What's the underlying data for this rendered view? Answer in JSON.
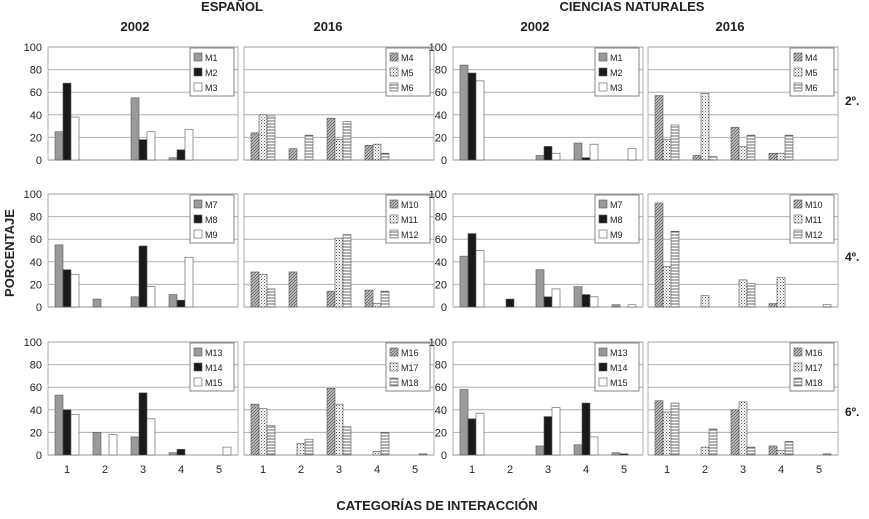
{
  "header": {
    "subject_1": "ESPAÑOL",
    "subject_2": "CIENCIAS NATURALES",
    "year_a": "2002",
    "year_b": "2016"
  },
  "grades": [
    "2º.",
    "4º.",
    "6º."
  ],
  "axes": {
    "ylabel": "PORCENTAJE",
    "xlabel": "CATEGORÍAS DE INTERACCIÓN",
    "yticks": [
      "0",
      "20",
      "40",
      "60",
      "80",
      "100"
    ],
    "xticks": [
      "1",
      "2",
      "3",
      "4",
      "5"
    ],
    "ylim": [
      0,
      100
    ]
  },
  "colors": {
    "dark": "#1a1a1a",
    "grey": "#9a9a9a",
    "white": "#ffffff",
    "grid": "#b0b0b0",
    "frame": "#9a9a9a"
  },
  "chart_data": [
    {
      "type": "bar",
      "subject": "ESPAÑOL",
      "year": "2002",
      "grade": "2º.",
      "categories": [
        "1",
        "2",
        "3",
        "4",
        "5"
      ],
      "ylim": [
        0,
        100
      ],
      "series": [
        {
          "name": "M1",
          "style": "grey",
          "values": [
            25,
            0,
            55,
            2,
            0
          ]
        },
        {
          "name": "M2",
          "style": "black",
          "values": [
            68,
            0,
            18,
            9,
            0
          ]
        },
        {
          "name": "M3",
          "style": "white",
          "values": [
            38,
            0,
            25,
            27,
            0
          ]
        }
      ]
    },
    {
      "type": "bar",
      "subject": "ESPAÑOL",
      "year": "2016",
      "grade": "2º.",
      "categories": [
        "1",
        "2",
        "3",
        "4",
        "5"
      ],
      "ylim": [
        0,
        100
      ],
      "series": [
        {
          "name": "M4",
          "style": "diag",
          "values": [
            24,
            10,
            37,
            13,
            0
          ]
        },
        {
          "name": "M5",
          "style": "dots",
          "values": [
            40,
            0,
            18,
            14,
            0
          ]
        },
        {
          "name": "M6",
          "style": "hlines",
          "values": [
            39,
            22,
            34,
            6,
            0
          ]
        }
      ]
    },
    {
      "type": "bar",
      "subject": "CIENCIAS NATURALES",
      "year": "2002",
      "grade": "2º.",
      "categories": [
        "1",
        "2",
        "3",
        "4",
        "5"
      ],
      "ylim": [
        0,
        100
      ],
      "series": [
        {
          "name": "M1",
          "style": "grey",
          "values": [
            84,
            0,
            4,
            15,
            0
          ]
        },
        {
          "name": "M2",
          "style": "black",
          "values": [
            77,
            0,
            12,
            2,
            0
          ]
        },
        {
          "name": "M3",
          "style": "white",
          "values": [
            70,
            0,
            6,
            14,
            10
          ]
        }
      ]
    },
    {
      "type": "bar",
      "subject": "CIENCIAS NATURALES",
      "year": "2016",
      "grade": "2º.",
      "categories": [
        "1",
        "2",
        "3",
        "4",
        "5"
      ],
      "ylim": [
        0,
        100
      ],
      "series": [
        {
          "name": "M4",
          "style": "diag",
          "values": [
            57,
            4,
            29,
            6,
            0
          ]
        },
        {
          "name": "M5",
          "style": "dots",
          "values": [
            18,
            59,
            12,
            6,
            0
          ]
        },
        {
          "name": "M6",
          "style": "hlines",
          "values": [
            31,
            3,
            22,
            22,
            0
          ]
        }
      ]
    },
    {
      "type": "bar",
      "subject": "ESPAÑOL",
      "year": "2002",
      "grade": "4º.",
      "categories": [
        "1",
        "2",
        "3",
        "4",
        "5"
      ],
      "ylim": [
        0,
        100
      ],
      "series": [
        {
          "name": "M7",
          "style": "grey",
          "values": [
            55,
            7,
            9,
            11,
            0
          ]
        },
        {
          "name": "M8",
          "style": "black",
          "values": [
            33,
            0,
            54,
            6,
            0
          ]
        },
        {
          "name": "M9",
          "style": "white",
          "values": [
            29,
            0,
            18,
            44,
            0
          ]
        }
      ]
    },
    {
      "type": "bar",
      "subject": "ESPAÑOL",
      "year": "2016",
      "grade": "4º.",
      "categories": [
        "1",
        "2",
        "3",
        "4",
        "5"
      ],
      "ylim": [
        0,
        100
      ],
      "series": [
        {
          "name": "M10",
          "style": "diag",
          "values": [
            31,
            31,
            14,
            15,
            0
          ]
        },
        {
          "name": "M11",
          "style": "dots",
          "values": [
            29,
            0,
            61,
            3,
            0
          ]
        },
        {
          "name": "M12",
          "style": "hlines",
          "values": [
            16,
            0,
            64,
            14,
            0
          ]
        }
      ]
    },
    {
      "type": "bar",
      "subject": "CIENCIAS NATURALES",
      "year": "2002",
      "grade": "4º.",
      "categories": [
        "1",
        "2",
        "3",
        "4",
        "5"
      ],
      "ylim": [
        0,
        100
      ],
      "series": [
        {
          "name": "M7",
          "style": "grey",
          "values": [
            45,
            0,
            33,
            18,
            2
          ]
        },
        {
          "name": "M8",
          "style": "black",
          "values": [
            65,
            7,
            9,
            11,
            0
          ]
        },
        {
          "name": "M9",
          "style": "white",
          "values": [
            50,
            0,
            16,
            9,
            2
          ]
        }
      ]
    },
    {
      "type": "bar",
      "subject": "CIENCIAS NATURALES",
      "year": "2016",
      "grade": "4º.",
      "categories": [
        "1",
        "2",
        "3",
        "4",
        "5"
      ],
      "ylim": [
        0,
        100
      ],
      "series": [
        {
          "name": "M10",
          "style": "diag",
          "values": [
            92,
            0,
            0,
            3,
            0
          ]
        },
        {
          "name": "M11",
          "style": "dots",
          "values": [
            36,
            10,
            24,
            26,
            0
          ]
        },
        {
          "name": "M12",
          "style": "hlines",
          "values": [
            67,
            0,
            21,
            0,
            2
          ]
        }
      ]
    },
    {
      "type": "bar",
      "subject": "ESPAÑOL",
      "year": "2002",
      "grade": "6º.",
      "categories": [
        "1",
        "2",
        "3",
        "4",
        "5"
      ],
      "ylim": [
        0,
        100
      ],
      "series": [
        {
          "name": "M13",
          "style": "grey",
          "values": [
            53,
            20,
            16,
            2,
            0
          ]
        },
        {
          "name": "M14",
          "style": "black",
          "values": [
            40,
            0,
            55,
            5,
            0
          ]
        },
        {
          "name": "M15",
          "style": "white",
          "values": [
            36,
            18,
            32,
            0,
            7
          ]
        }
      ]
    },
    {
      "type": "bar",
      "subject": "ESPAÑOL",
      "year": "2016",
      "grade": "6º.",
      "categories": [
        "1",
        "2",
        "3",
        "4",
        "5"
      ],
      "ylim": [
        0,
        100
      ],
      "series": [
        {
          "name": "M16",
          "style": "diag",
          "values": [
            45,
            0,
            59,
            0,
            0
          ]
        },
        {
          "name": "M17",
          "style": "dots",
          "values": [
            41,
            10,
            45,
            3,
            0
          ]
        },
        {
          "name": "M18",
          "style": "hlines",
          "values": [
            26,
            14,
            25,
            20,
            1
          ]
        }
      ]
    },
    {
      "type": "bar",
      "subject": "CIENCIAS NATURALES",
      "year": "2002",
      "grade": "6º.",
      "categories": [
        "1",
        "2",
        "3",
        "4",
        "5"
      ],
      "ylim": [
        0,
        100
      ],
      "series": [
        {
          "name": "M13",
          "style": "grey",
          "values": [
            58,
            0,
            8,
            9,
            2
          ]
        },
        {
          "name": "M14",
          "style": "black",
          "values": [
            32,
            0,
            34,
            46,
            1
          ]
        },
        {
          "name": "M15",
          "style": "white",
          "values": [
            37,
            0,
            42,
            16,
            0
          ]
        }
      ]
    },
    {
      "type": "bar",
      "subject": "CIENCIAS NATURALES",
      "year": "2016",
      "grade": "6º.",
      "categories": [
        "1",
        "2",
        "3",
        "4",
        "5"
      ],
      "ylim": [
        0,
        100
      ],
      "series": [
        {
          "name": "M16",
          "style": "diag",
          "values": [
            48,
            0,
            40,
            8,
            0
          ]
        },
        {
          "name": "M17",
          "style": "dots",
          "values": [
            38,
            7,
            47,
            4,
            0
          ]
        },
        {
          "name": "M18",
          "style": "hlines",
          "values": [
            46,
            23,
            7,
            12,
            1
          ]
        }
      ]
    }
  ]
}
